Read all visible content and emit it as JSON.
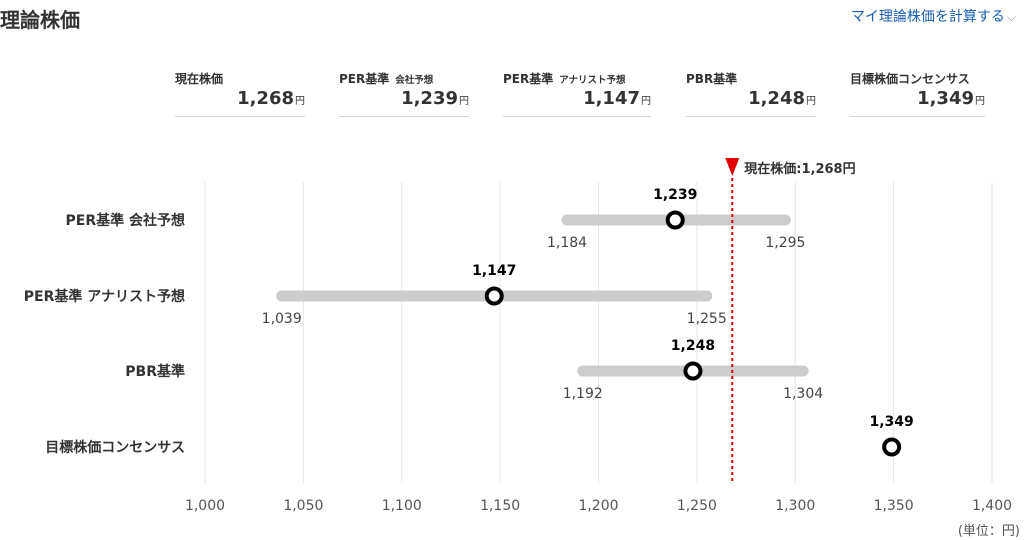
{
  "header": {
    "title": "理論株価",
    "link_label": "マイ理論株価を計算する"
  },
  "summary": [
    {
      "label": "現在株価",
      "sublabel": "",
      "value": "1,268",
      "unit": "円"
    },
    {
      "label": "PER基準",
      "sublabel": "会社予想",
      "value": "1,239",
      "unit": "円"
    },
    {
      "label": "PER基準",
      "sublabel": "アナリスト予想",
      "value": "1,147",
      "unit": "円"
    },
    {
      "label": "PBR基準",
      "sublabel": "",
      "value": "1,248",
      "unit": "円"
    },
    {
      "label": "目標株価コンセンサス",
      "sublabel": "",
      "value": "1,349",
      "unit": "円"
    }
  ],
  "chart_data": {
    "type": "range",
    "x_ticks": [
      1000,
      1050,
      1100,
      1150,
      1200,
      1250,
      1300,
      1350,
      1400
    ],
    "x_tick_labels": [
      "1,000",
      "1,050",
      "1,100",
      "1,150",
      "1,200",
      "1,250",
      "1,300",
      "1,350",
      "1,400"
    ],
    "xlim": [
      1000,
      1400
    ],
    "unit_label": "(単位：円)",
    "current_price": {
      "value": 1268,
      "label": "現在株価:1,268円"
    },
    "rows": [
      {
        "name": "PER基準 会社予想",
        "value": 1239,
        "value_label": "1,239",
        "low": 1184,
        "low_label": "1,184",
        "high": 1295,
        "high_label": "1,295"
      },
      {
        "name": "PER基準 アナリスト予想",
        "value": 1147,
        "value_label": "1,147",
        "low": 1039,
        "low_label": "1,039",
        "high": 1255,
        "high_label": "1,255"
      },
      {
        "name": "PBR基準",
        "value": 1248,
        "value_label": "1,248",
        "low": 1192,
        "low_label": "1,192",
        "high": 1304,
        "high_label": "1,304"
      },
      {
        "name": "目標株価コンセンサス",
        "value": 1349,
        "value_label": "1,349",
        "low": null,
        "low_label": "",
        "high": null,
        "high_label": ""
      }
    ],
    "colors": {
      "range_bar": "#cccccc",
      "marker": "#000000",
      "current_line": "#e00000",
      "grid": "#e6e6e6"
    },
    "grid": true
  }
}
